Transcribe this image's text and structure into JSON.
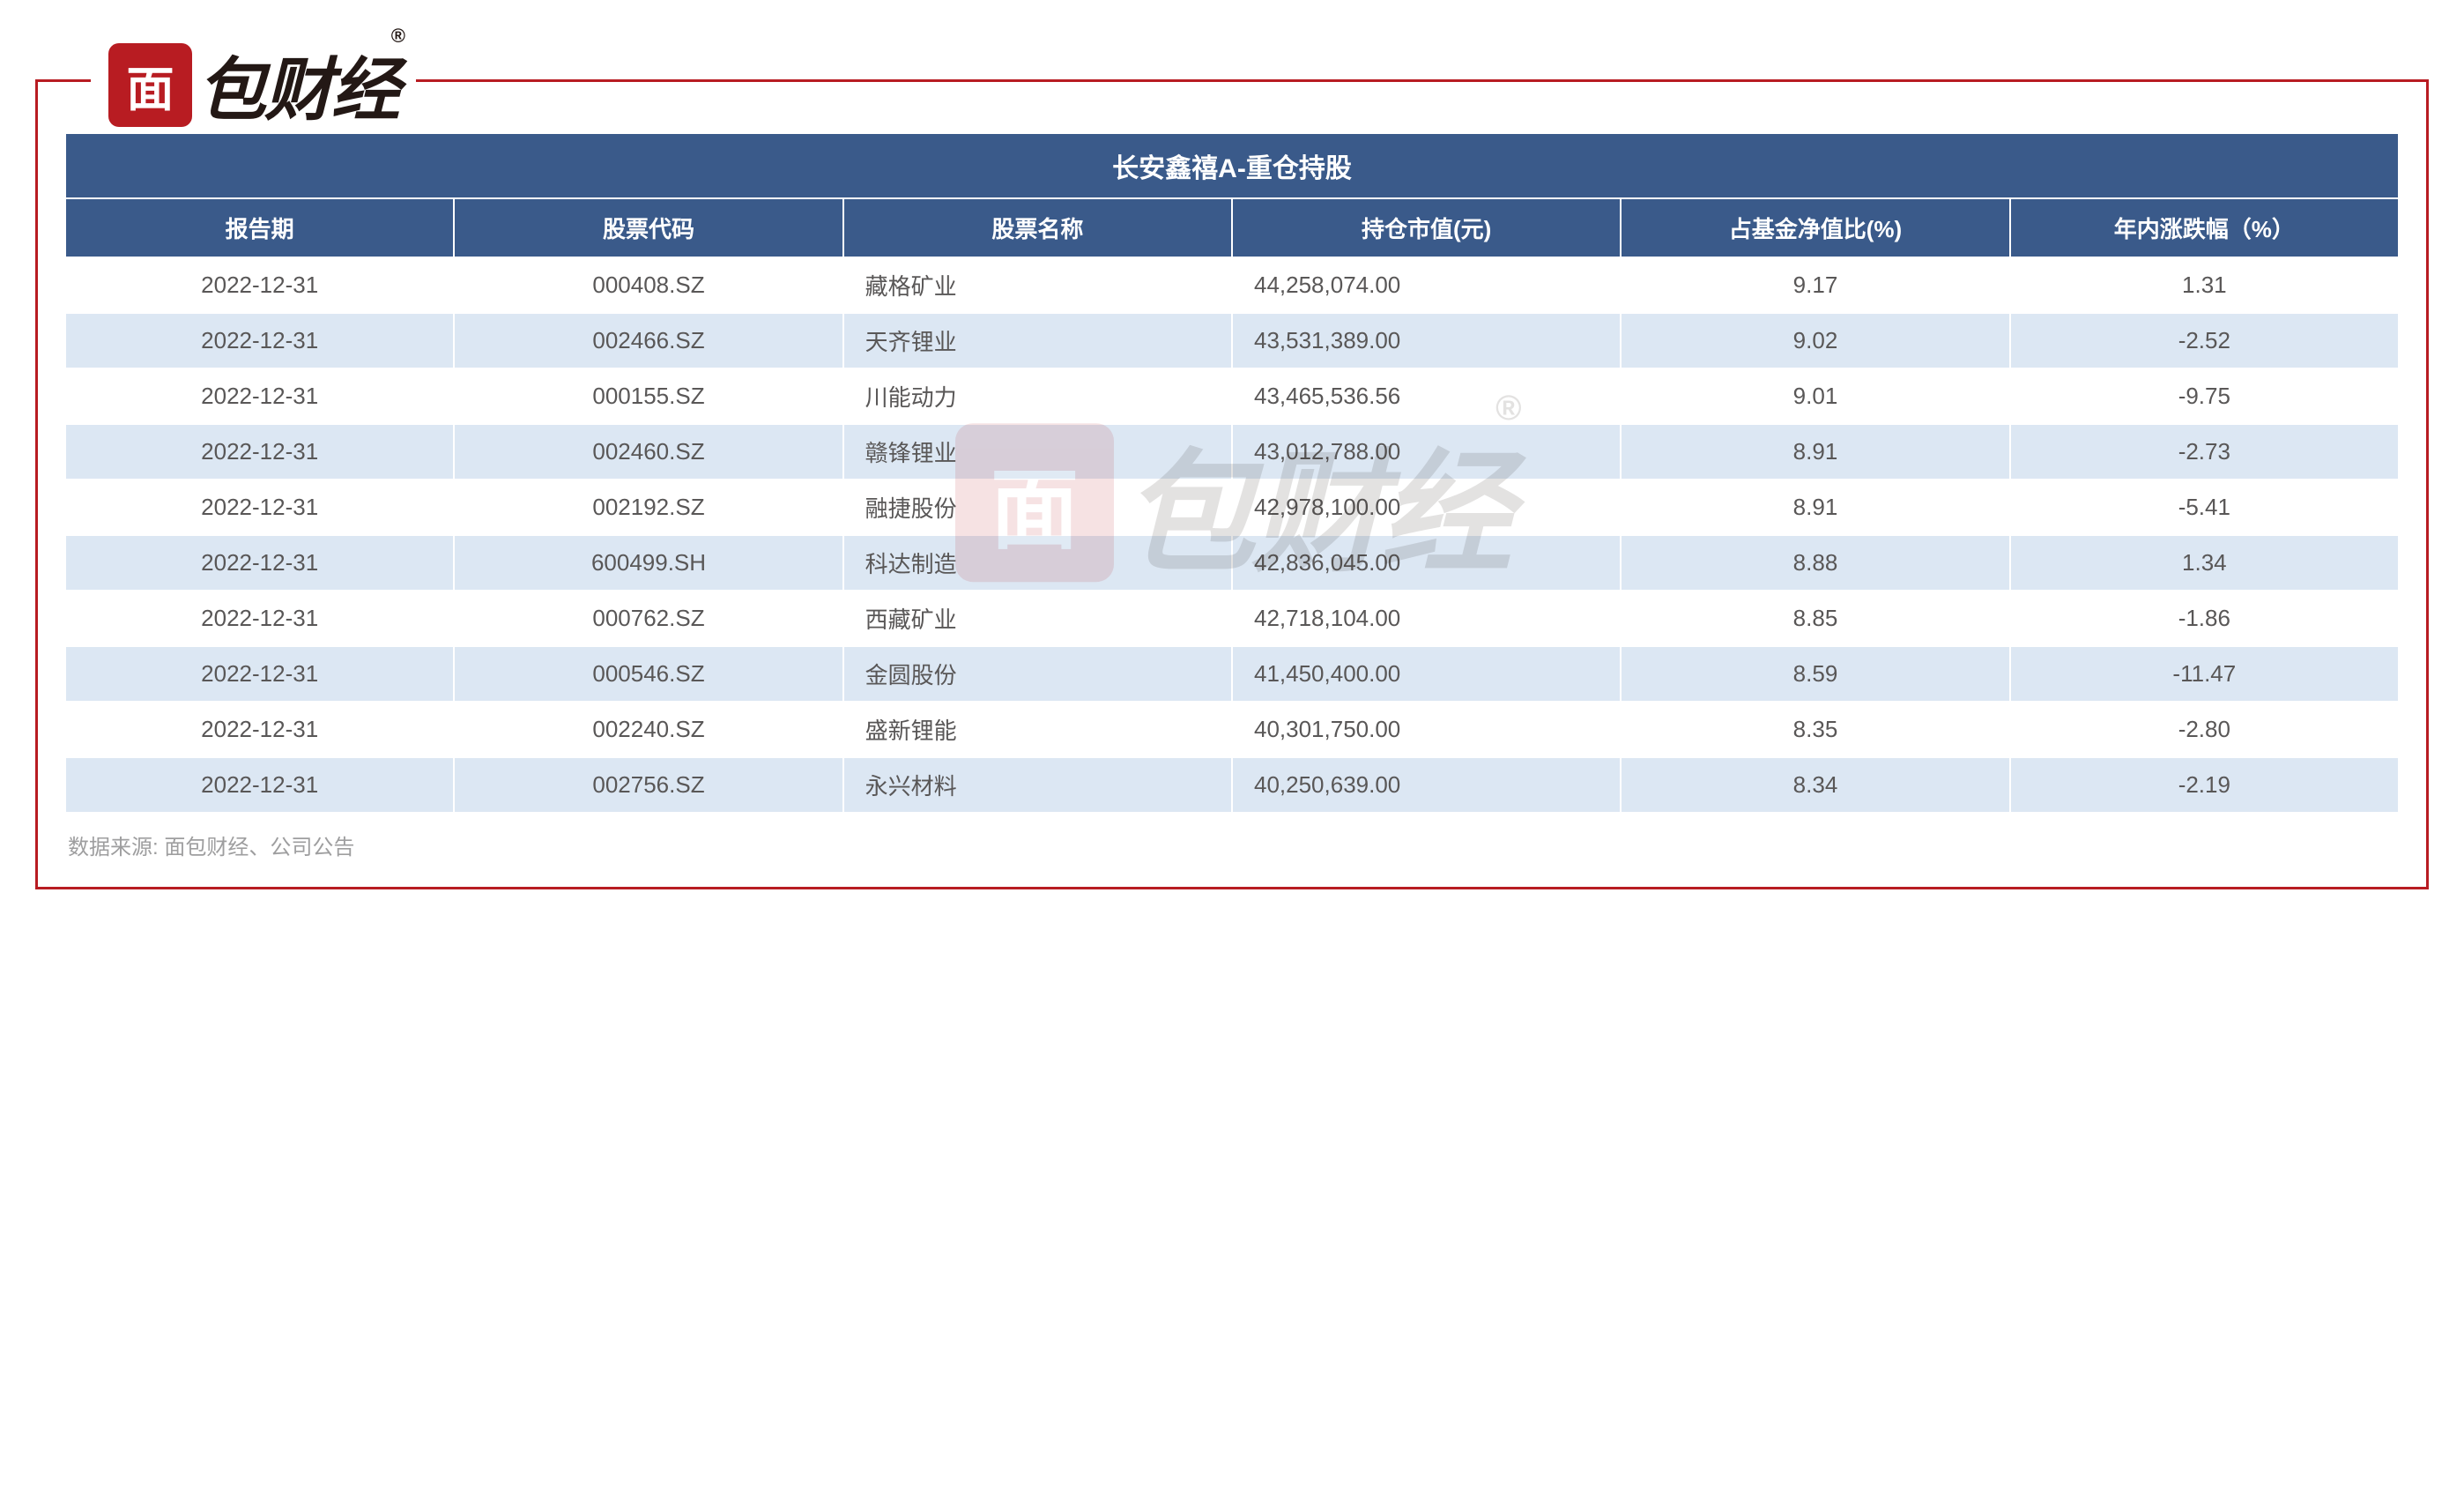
{
  "logo": {
    "badge_char": "面",
    "text": "包财经",
    "registered": "®"
  },
  "table": {
    "title": "长安鑫禧A-重仓持股",
    "columns": [
      "报告期",
      "股票代码",
      "股票名称",
      "持仓市值(元)",
      "占基金净值比(%)",
      "年内涨跌幅（%）"
    ],
    "rows": [
      [
        "2022-12-31",
        "000408.SZ",
        "藏格矿业",
        "44,258,074.00",
        "9.17",
        "1.31"
      ],
      [
        "2022-12-31",
        "002466.SZ",
        "天齐锂业",
        "43,531,389.00",
        "9.02",
        "-2.52"
      ],
      [
        "2022-12-31",
        "000155.SZ",
        "川能动力",
        "43,465,536.56",
        "9.01",
        "-9.75"
      ],
      [
        "2022-12-31",
        "002460.SZ",
        "赣锋锂业",
        "43,012,788.00",
        "8.91",
        "-2.73"
      ],
      [
        "2022-12-31",
        "002192.SZ",
        "融捷股份",
        "42,978,100.00",
        "8.91",
        "-5.41"
      ],
      [
        "2022-12-31",
        "600499.SH",
        "科达制造",
        "42,836,045.00",
        "8.88",
        "1.34"
      ],
      [
        "2022-12-31",
        "000762.SZ",
        "西藏矿业",
        "42,718,104.00",
        "8.85",
        "-1.86"
      ],
      [
        "2022-12-31",
        "000546.SZ",
        "金圆股份",
        "41,450,400.00",
        "8.59",
        "-11.47"
      ],
      [
        "2022-12-31",
        "002240.SZ",
        "盛新锂能",
        "40,301,750.00",
        "8.35",
        "-2.80"
      ],
      [
        "2022-12-31",
        "002756.SZ",
        "永兴材料",
        "40,250,639.00",
        "8.34",
        "-2.19"
      ]
    ]
  },
  "source": "数据来源: 面包财经、公司公告",
  "style": {
    "header_bg": "#3a5a8a",
    "header_fg": "#ffffff",
    "row_odd_bg": "#ffffff",
    "row_even_bg": "#dce7f3",
    "border_color": "#ffffff",
    "frame_color": "#b81c22",
    "text_color": "#595757",
    "source_color": "#9e9e9f",
    "title_fontsize": 30,
    "header_fontsize": 26,
    "cell_fontsize": 26
  }
}
